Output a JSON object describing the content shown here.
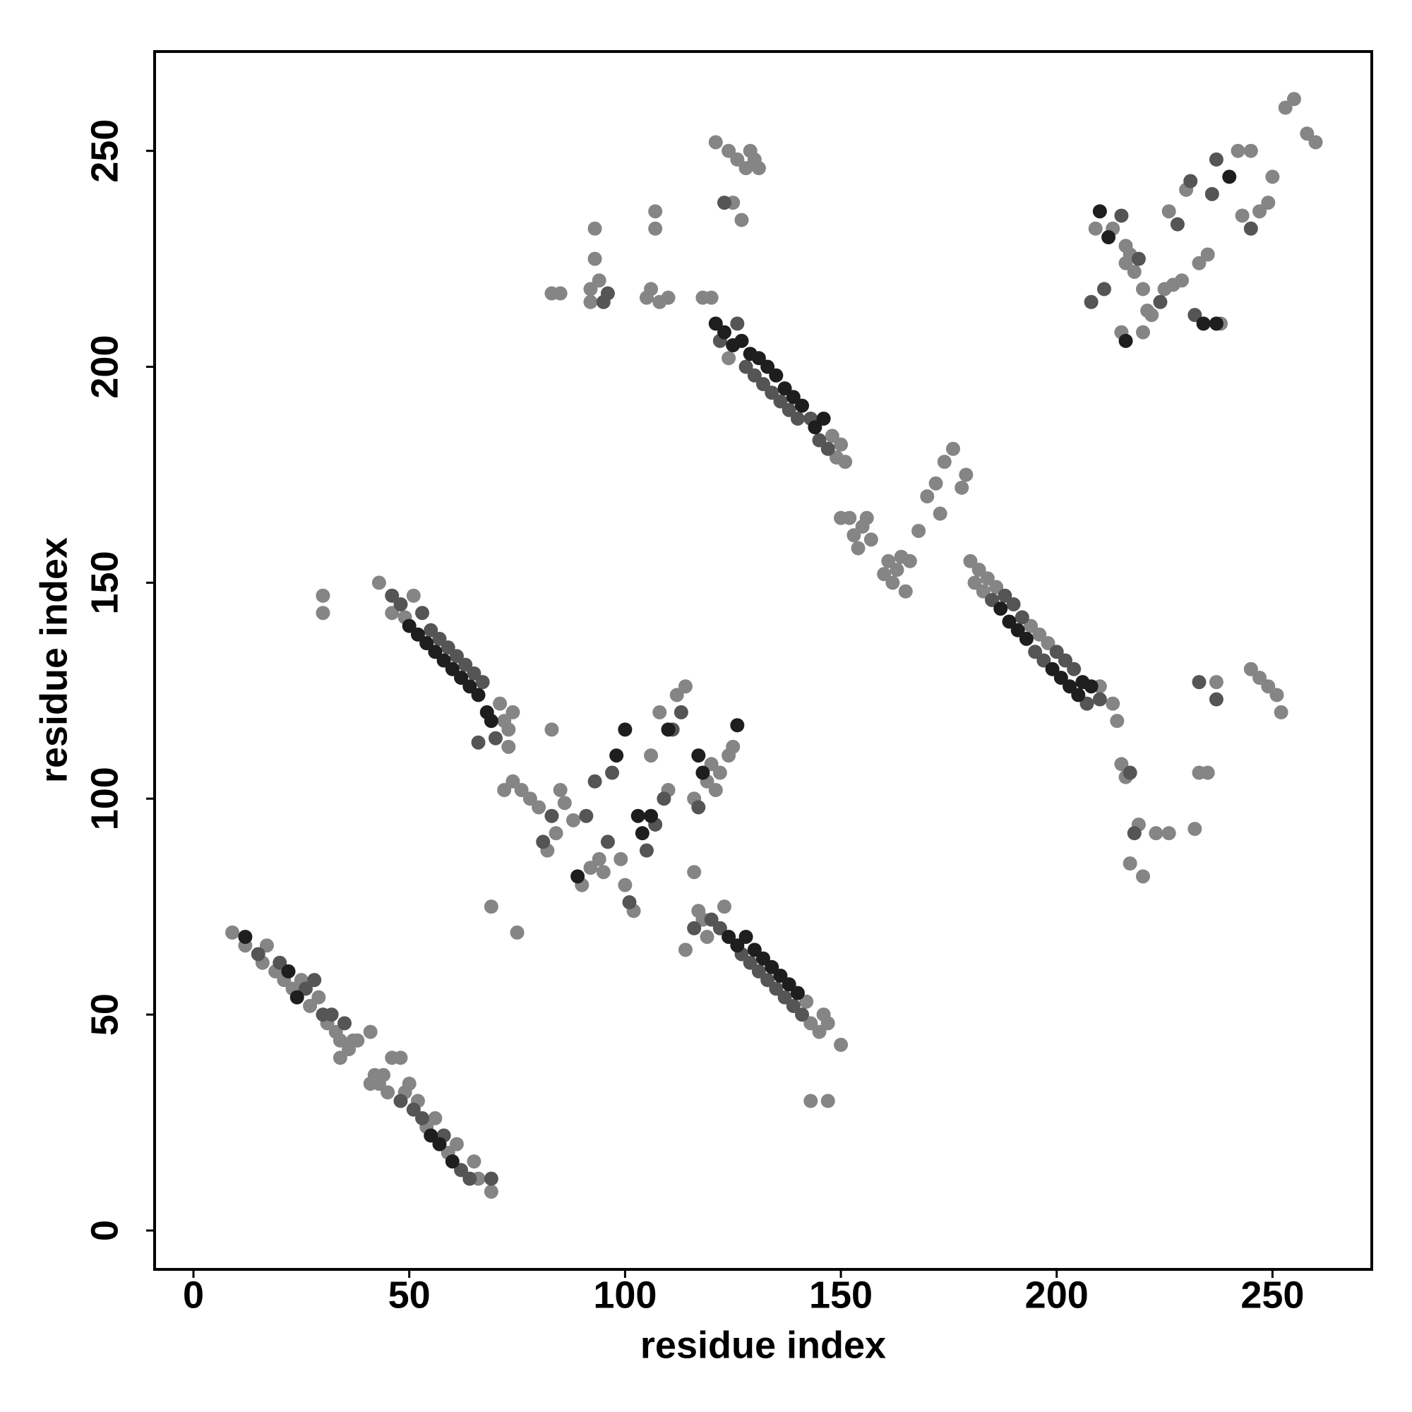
{
  "chart_data": {
    "type": "scatter",
    "x_label": "residue index",
    "y_label": "residue index",
    "xlim": [
      -9,
      273
    ],
    "ylim": [
      -9,
      273
    ],
    "xticks": [
      0,
      50,
      100,
      150,
      200,
      250
    ],
    "yticks": [
      0,
      50,
      100,
      150,
      200,
      250
    ],
    "grid": false,
    "series": [
      {
        "color": "#858585",
        "x": [
          9,
          12,
          16,
          17,
          19,
          21,
          23,
          25,
          27,
          29,
          31,
          33,
          34,
          34,
          36,
          37,
          38,
          41,
          41,
          42,
          43,
          44,
          45,
          46,
          48,
          49,
          50,
          52,
          54,
          56,
          59,
          61,
          65,
          66,
          69,
          43,
          46,
          49,
          51,
          71,
          72,
          73,
          74,
          73,
          30,
          30,
          114,
          117,
          118,
          119,
          123,
          142,
          143,
          145,
          146,
          147,
          150,
          143,
          147,
          116,
          118,
          120,
          124,
          148,
          149,
          150,
          151,
          152,
          153,
          154,
          155,
          156,
          157,
          150,
          160,
          161,
          162,
          163,
          164,
          165,
          166,
          168,
          170,
          172,
          173,
          174,
          176,
          178,
          179,
          180,
          181,
          182,
          183,
          184,
          186,
          194,
          196,
          198,
          210,
          72,
          74,
          76,
          78,
          80,
          82,
          84,
          85,
          86,
          88,
          90,
          92,
          94,
          95,
          99,
          100,
          102,
          106,
          108,
          112,
          114,
          119,
          120,
          121,
          122,
          124,
          125,
          116,
          83,
          75,
          69,
          110,
          83,
          85,
          92,
          92,
          93,
          93,
          94,
          105,
          106,
          107,
          107,
          108,
          110,
          121,
          124,
          125,
          126,
          127,
          128,
          129,
          130,
          131,
          209,
          213,
          216,
          216,
          217,
          218,
          220,
          221,
          222,
          225,
          226,
          227,
          229,
          230,
          233,
          235,
          238,
          243,
          247,
          249,
          250,
          253,
          255,
          258,
          260,
          215,
          220,
          242,
          245,
          213,
          214,
          215,
          216,
          219,
          217,
          220,
          223,
          226,
          232,
          233,
          235,
          237,
          245,
          247,
          249,
          251,
          252
        ],
        "values": [
          69,
          66,
          62,
          66,
          60,
          58,
          56,
          58,
          52,
          54,
          48,
          46,
          44,
          40,
          42,
          44,
          44,
          34,
          46,
          36,
          34,
          36,
          32,
          40,
          40,
          32,
          34,
          30,
          24,
          26,
          18,
          20,
          16,
          12,
          9,
          150,
          143,
          142,
          147,
          122,
          118,
          116,
          120,
          112,
          147,
          143,
          65,
          74,
          72,
          68,
          75,
          53,
          48,
          46,
          50,
          48,
          43,
          30,
          30,
          83,
          216,
          216,
          202,
          184,
          179,
          182,
          178,
          165,
          161,
          158,
          163,
          165,
          160,
          165,
          152,
          155,
          150,
          153,
          156,
          148,
          155,
          162,
          170,
          173,
          166,
          178,
          181,
          172,
          175,
          155,
          150,
          153,
          148,
          151,
          149,
          140,
          138,
          136,
          126,
          102,
          104,
          102,
          100,
          98,
          88,
          92,
          102,
          99,
          95,
          80,
          84,
          86,
          83,
          86,
          80,
          74,
          110,
          120,
          124,
          126,
          104,
          108,
          102,
          106,
          110,
          112,
          100,
          116,
          69,
          75,
          102,
          217,
          217,
          218,
          215,
          225,
          232,
          220,
          216,
          218,
          236,
          232,
          215,
          216,
          252,
          250,
          238,
          248,
          234,
          246,
          250,
          248,
          246,
          232,
          232,
          228,
          224,
          226,
          222,
          218,
          213,
          212,
          218,
          236,
          219,
          220,
          241,
          224,
          226,
          210,
          235,
          236,
          238,
          244,
          260,
          262,
          254,
          252,
          208,
          208,
          250,
          250,
          122,
          118,
          108,
          105,
          94,
          85,
          82,
          92,
          92,
          93,
          106,
          106,
          127,
          130,
          128,
          126,
          124,
          120
        ]
      },
      {
        "color": "#555555",
        "x": [
          15,
          20,
          26,
          28,
          30,
          32,
          35,
          48,
          51,
          53,
          58,
          62,
          64,
          69,
          46,
          48,
          53,
          55,
          57,
          59,
          61,
          63,
          65,
          67,
          70,
          66,
          122,
          126,
          128,
          130,
          132,
          134,
          136,
          138,
          140,
          143,
          145,
          147,
          116,
          120,
          122,
          127,
          129,
          131,
          133,
          135,
          137,
          139,
          141,
          185,
          188,
          190,
          192,
          195,
          197,
          200,
          202,
          204,
          207,
          210,
          93,
          96,
          97,
          101,
          105,
          107,
          109,
          111,
          113,
          117,
          81,
          83,
          91,
          208,
          211,
          215,
          219,
          224,
          228,
          231,
          232,
          236,
          245,
          218,
          217,
          233,
          237,
          123,
          95,
          96,
          237
        ],
        "values": [
          64,
          62,
          56,
          58,
          50,
          50,
          48,
          30,
          28,
          26,
          22,
          14,
          12,
          12,
          147,
          145,
          143,
          139,
          137,
          135,
          133,
          131,
          129,
          127,
          114,
          113,
          206,
          210,
          200,
          198,
          196,
          194,
          192,
          190,
          188,
          188,
          183,
          181,
          70,
          72,
          70,
          64,
          62,
          60,
          58,
          56,
          54,
          52,
          50,
          146,
          147,
          145,
          142,
          134,
          132,
          134,
          132,
          130,
          122,
          123,
          104,
          90,
          106,
          76,
          88,
          94,
          100,
          116,
          120,
          98,
          90,
          96,
          96,
          215,
          218,
          235,
          225,
          215,
          233,
          243,
          212,
          240,
          232,
          92,
          106,
          127,
          123,
          238,
          215,
          217,
          248
        ]
      },
      {
        "color": "#1e1e1e",
        "x": [
          12,
          22,
          24,
          55,
          57,
          60,
          50,
          52,
          54,
          56,
          58,
          60,
          62,
          64,
          66,
          68,
          69,
          121,
          123,
          125,
          127,
          129,
          131,
          133,
          135,
          137,
          139,
          141,
          144,
          146,
          124,
          126,
          128,
          130,
          132,
          134,
          136,
          138,
          140,
          187,
          189,
          191,
          193,
          199,
          201,
          203,
          205,
          206,
          208,
          98,
          100,
          103,
          104,
          106,
          110,
          117,
          89,
          210,
          212,
          216,
          237,
          234,
          126,
          118,
          240
        ],
        "values": [
          68,
          60,
          54,
          22,
          20,
          16,
          140,
          138,
          136,
          134,
          132,
          130,
          128,
          126,
          124,
          120,
          118,
          210,
          208,
          205,
          206,
          203,
          202,
          200,
          198,
          195,
          193,
          191,
          186,
          188,
          68,
          66,
          68,
          65,
          63,
          61,
          59,
          57,
          55,
          144,
          141,
          139,
          137,
          130,
          128,
          126,
          124,
          127,
          126,
          110,
          116,
          96,
          92,
          96,
          116,
          110,
          82,
          236,
          230,
          206,
          210,
          210,
          117,
          106,
          244
        ]
      }
    ]
  }
}
